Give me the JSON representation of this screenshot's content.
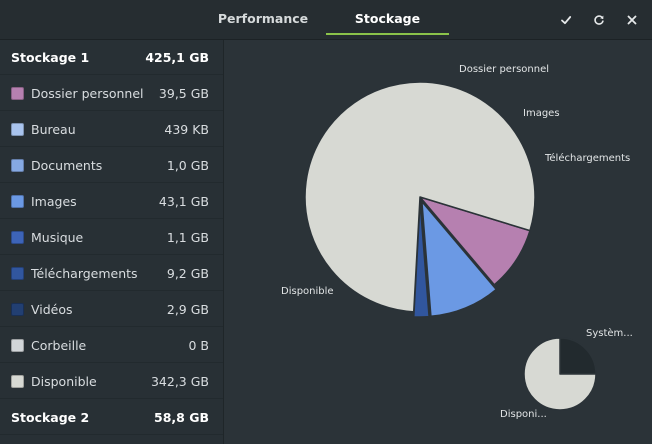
{
  "header": {
    "tabs": [
      {
        "label": "Performance",
        "active": false
      },
      {
        "label": "Stockage",
        "active": true
      }
    ],
    "buttons": {
      "apply_icon": "checkmark-icon",
      "refresh_icon": "refresh-icon",
      "close_icon": "close-icon"
    },
    "accent_color": "#8bc34a"
  },
  "sidebar": {
    "disk1": {
      "name": "Stockage 1",
      "size": "425,1 GB"
    },
    "items": [
      {
        "name": "Dossier personnel",
        "size": "39,5 GB",
        "color": "#b680b0"
      },
      {
        "name": "Bureau",
        "size": "439 KB",
        "color": "#a9c4ee"
      },
      {
        "name": "Documents",
        "size": "1,0 GB",
        "color": "#86a9e3"
      },
      {
        "name": "Images",
        "size": "43,1 GB",
        "color": "#6b99e4"
      },
      {
        "name": "Musique",
        "size": "1,1 GB",
        "color": "#3d64b8"
      },
      {
        "name": "Téléchargements",
        "size": "9,2 GB",
        "color": "#31569e"
      },
      {
        "name": "Vidéos",
        "size": "2,9 GB",
        "color": "#223f72"
      },
      {
        "name": "Corbeille",
        "size": "0 B",
        "color": "#d2d6d9"
      },
      {
        "name": "Disponible",
        "size": "342,3 GB",
        "color": "#d7d9d3"
      }
    ],
    "disk2": {
      "name": "Stockage 2",
      "size": "58,8 GB"
    }
  },
  "chart_data": [
    {
      "type": "pie",
      "slices": [
        {
          "label": "Dossier personnel",
          "value": 39.5,
          "color": "#b680b0",
          "exploded": false
        },
        {
          "label": "Images",
          "value": 43.1,
          "color": "#6b99e4",
          "exploded": true
        },
        {
          "label": "Téléchargements",
          "value": 9.2,
          "color": "#31569e",
          "exploded": true
        },
        {
          "label": "Disponible",
          "value": 342.3,
          "color": "#d7d9d3",
          "exploded": false
        }
      ],
      "printed_labels": [
        "Dossier personnel",
        "Images",
        "Téléchargements",
        "Disponible"
      ]
    },
    {
      "type": "pie",
      "slices": [
        {
          "label": "Systèm...",
          "value": 0.25,
          "color": "#222a2e"
        },
        {
          "label": "Disponi...",
          "value": 0.75,
          "color": "#d7d9d3"
        }
      ],
      "printed_labels": [
        "Systèm...",
        "Disponi..."
      ]
    }
  ]
}
